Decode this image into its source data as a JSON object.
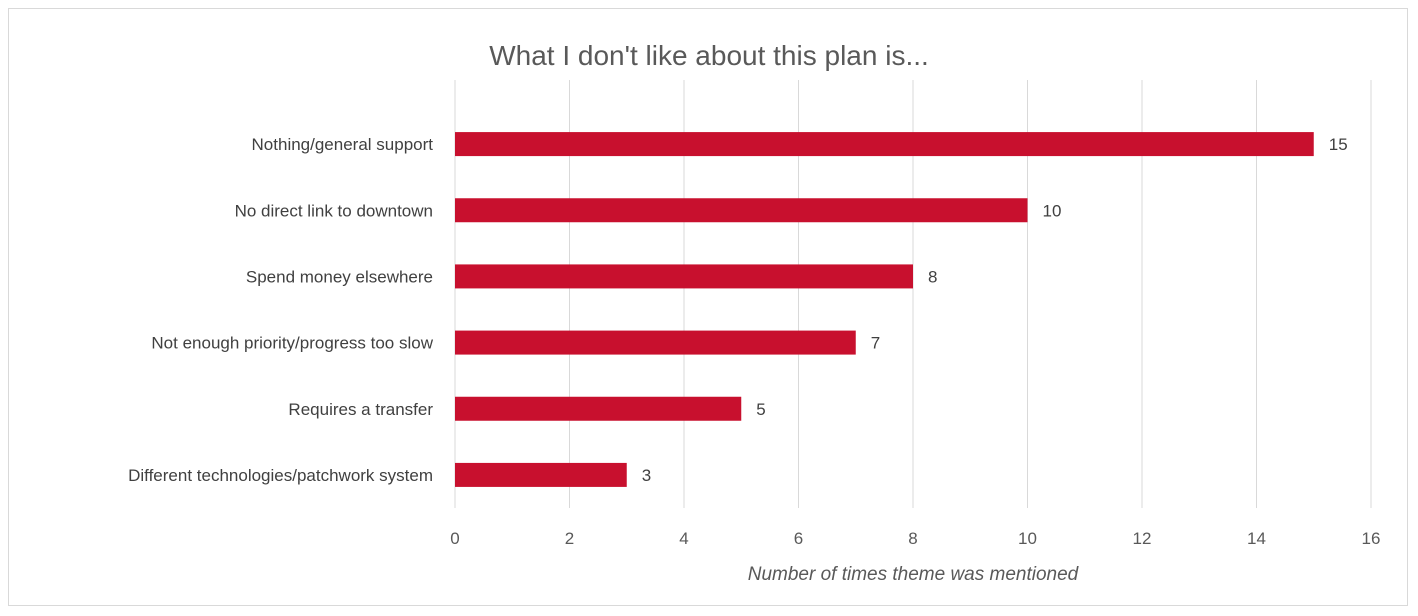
{
  "chart_data": {
    "type": "bar",
    "orientation": "horizontal",
    "title": "What I don't like about this plan is...",
    "xlabel": "Number of times theme was mentioned",
    "ylabel": "",
    "categories": [
      "Nothing/general support",
      "No direct link to downtown",
      "Spend money elsewhere",
      "Not enough priority/progress too slow",
      "Requires a transfer",
      "Different technologies/patchwork system"
    ],
    "values": [
      15,
      10,
      8,
      7,
      5,
      3
    ],
    "xlim": [
      0,
      16
    ],
    "xticks": [
      "0",
      "2",
      "4",
      "6",
      "8",
      "10",
      "12",
      "14",
      "16"
    ],
    "bar_color": "#c8102e",
    "grid": "vertical",
    "data_labels": true
  }
}
